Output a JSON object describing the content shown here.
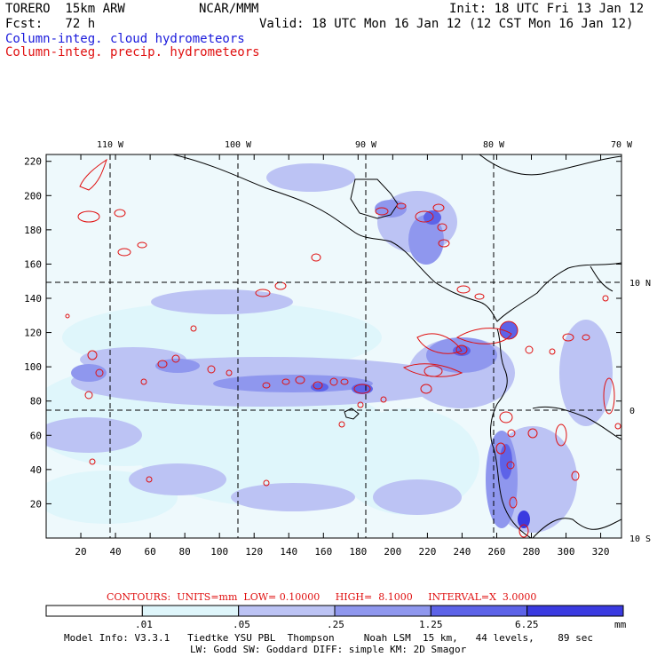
{
  "header": {
    "model": "TORERO  15km ARW",
    "center": "NCAR/MMM",
    "init": "Init: 18 UTC Fri 13 Jan 12",
    "fcst": "Fcst:   72 h",
    "valid": "Valid: 18 UTC Mon 16 Jan 12 (12 CST Mon 16 Jan 12)",
    "field1": "Column-integ. cloud hydrometeors",
    "field2": "Column-integ. precip. hydrometeors"
  },
  "colors": {
    "cloud": "#1a1adc",
    "precip": "#e01010",
    "shade1": "#dff6fb",
    "shade2": "#bcc3f4",
    "shade3": "#8f97ee",
    "shade4": "#5d63e8",
    "shade5": "#3a3ae0",
    "shade6": "#1e1ed8"
  },
  "map": {
    "lon_labels": [
      "110 W",
      "100 W",
      "90 W",
      "80 W",
      "70 W"
    ],
    "lat_labels": [
      "10 N",
      "0",
      "10 S"
    ],
    "grid_x_ticks": [
      "20",
      "40",
      "60",
      "80",
      "100",
      "120",
      "140",
      "160",
      "180",
      "200",
      "220",
      "240",
      "260",
      "280",
      "300",
      "320"
    ],
    "grid_y_ticks": [
      "20",
      "40",
      "60",
      "80",
      "100",
      "120",
      "140",
      "160",
      "180",
      "200",
      "220"
    ]
  },
  "contours_info": "CONTOURS:  UNITS=mm  LOW= 0.10000     HIGH=  8.1000     INTERVAL=X  3.0000",
  "colorbar": {
    "labels": [
      ".01",
      ".05",
      ".25",
      "1.25",
      "6.25"
    ],
    "unit": "mm"
  },
  "footer": {
    "line1": "Model Info: V3.3.1   Tiedtke YSU PBL  Thompson     Noah LSM  15 km,   44 levels,    89 sec",
    "line2": "LW: Godd SW: Goddard DIFF: simple KM: 2D Smagor"
  }
}
